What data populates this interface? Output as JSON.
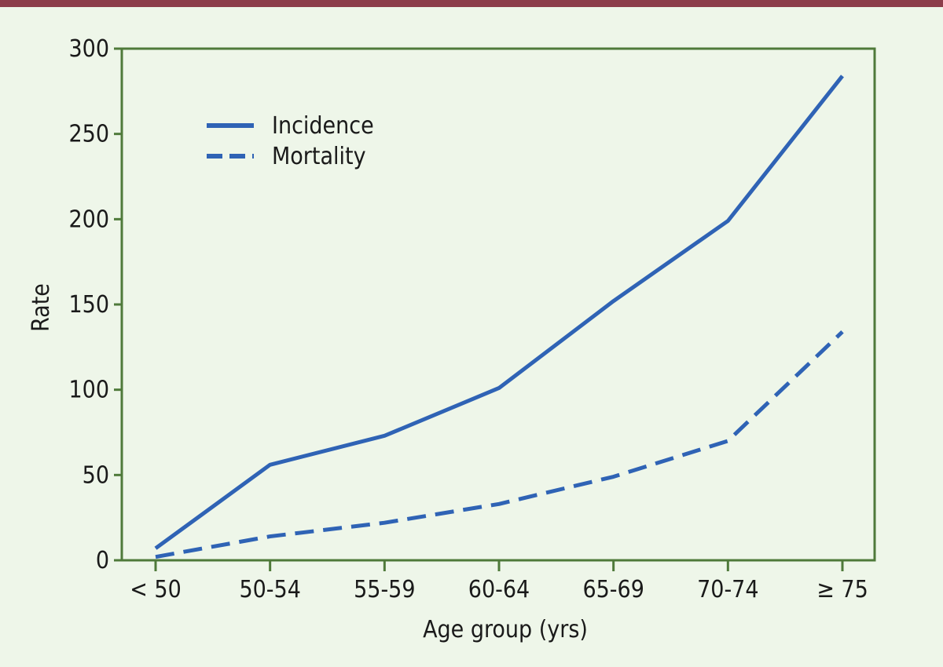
{
  "chart_data": {
    "type": "line",
    "categories": [
      "< 50",
      "50-54",
      "55-59",
      "60-64",
      "65-69",
      "70-74",
      "≥ 75"
    ],
    "series": [
      {
        "name": "Incidence",
        "values": [
          7,
          56,
          73,
          101,
          152,
          199,
          284
        ],
        "style": "solid"
      },
      {
        "name": "Mortality",
        "values": [
          2,
          14,
          22,
          33,
          49,
          70,
          134
        ],
        "style": "dashed"
      }
    ],
    "title": "",
    "xlabel": "Age group (yrs)",
    "ylabel": "Rate",
    "ylim": [
      0,
      300
    ],
    "yticks": [
      0,
      50,
      100,
      150,
      200,
      250,
      300
    ],
    "grid": false,
    "legend_position": "top-left",
    "colors": {
      "line": "#2f63b5",
      "axes": "#4f7a3a",
      "background": "#eef6e9",
      "top_bar": "#8c3d4a"
    }
  }
}
